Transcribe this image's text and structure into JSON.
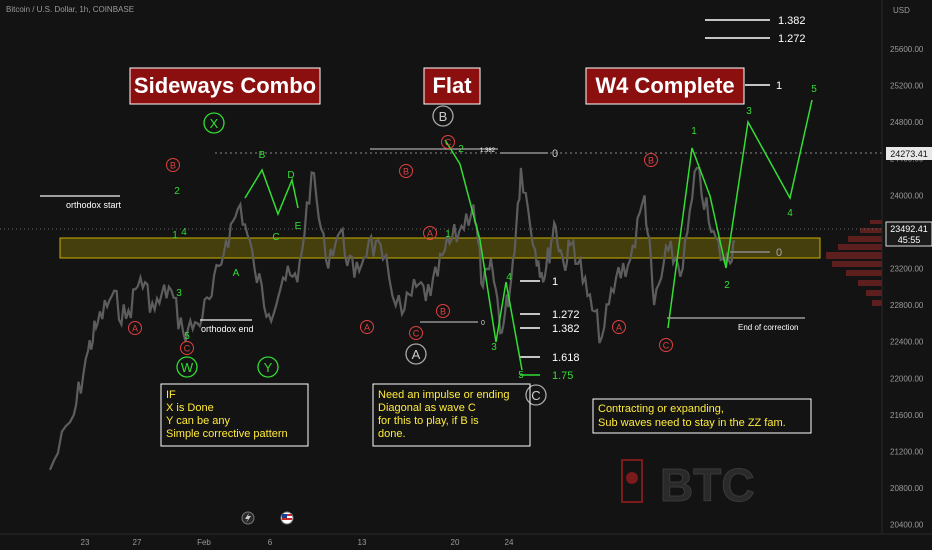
{
  "chart_data": {
    "type": "line",
    "symbol_line": "Bitcoin / U.S. Dollar, 1h, COINBASE",
    "y_axis_title": "USD",
    "ylim": [
      20320,
      26080
    ],
    "y_ticks": [
      25600,
      25200,
      24800,
      24400,
      24000,
      23600,
      23200,
      22800,
      22400,
      22000,
      21600,
      21200,
      20800,
      20400
    ],
    "y_tick_labels": [
      "25600.00",
      "25200.00",
      "24800.00",
      "24400.00",
      "24000.00",
      "23600.00",
      "23200.00",
      "22800.00",
      "22400.00",
      "22000.00",
      "21600.00",
      "21200.00",
      "20800.00",
      "20400.00"
    ],
    "price_tag_high": "24273.41",
    "price_tag_current": "23492.41",
    "countdown": "45:55",
    "x_tick_labels": [
      "23",
      "27",
      "Feb",
      "6",
      "13",
      "20",
      "24"
    ],
    "price_path": [
      [
        0,
        21000
      ],
      [
        0.05,
        21600
      ],
      [
        0.08,
        22300
      ],
      [
        0.1,
        22600
      ],
      [
        0.13,
        22900
      ],
      [
        0.16,
        22650
      ],
      [
        0.19,
        23100
      ],
      [
        0.22,
        22750
      ],
      [
        0.25,
        23000
      ],
      [
        0.28,
        22500
      ],
      [
        0.31,
        22600
      ],
      [
        0.34,
        22900
      ],
      [
        0.37,
        23500
      ],
      [
        0.4,
        23900
      ],
      [
        0.43,
        23200
      ],
      [
        0.46,
        22700
      ],
      [
        0.49,
        23100
      ],
      [
        0.52,
        23050
      ],
      [
        0.55,
        24250
      ],
      [
        0.58,
        23300
      ],
      [
        0.61,
        23600
      ],
      [
        0.64,
        23100
      ],
      [
        0.67,
        23500
      ],
      [
        0.7,
        23300
      ],
      [
        0.74,
        22700
      ],
      [
        0.77,
        23000
      ],
      [
        0.8,
        22900
      ],
      [
        0.83,
        23400
      ],
      [
        0.86,
        23600
      ],
      [
        0.89,
        23900
      ],
      [
        0.91,
        23000
      ],
      [
        0.93,
        23200
      ],
      [
        0.95,
        22500
      ],
      [
        0.97,
        23100
      ],
      [
        0.99,
        24300
      ],
      [
        1.02,
        23400
      ],
      [
        1.04,
        23100
      ],
      [
        1.06,
        23700
      ],
      [
        1.08,
        23250
      ],
      [
        1.1,
        23500
      ],
      [
        1.13,
        22900
      ],
      [
        1.16,
        22450
      ],
      [
        1.19,
        23100
      ],
      [
        1.22,
        23300
      ],
      [
        1.25,
        24000
      ],
      [
        1.27,
        22800
      ],
      [
        1.3,
        23400
      ],
      [
        1.33,
        23200
      ],
      [
        1.36,
        24300
      ],
      [
        1.39,
        23600
      ],
      [
        1.42,
        23250
      ],
      [
        1.44,
        23500
      ]
    ],
    "titles": [
      "Sideways Combo",
      "Flat",
      "W4 Complete"
    ],
    "annotations": {
      "orthodox_start": "orthodox start",
      "orthodox_end": "orthodox end",
      "end_of_correction": "End of correction",
      "fib_small": "1.382"
    },
    "fib_top": [
      "1.382",
      "1.272",
      "1"
    ],
    "fib_flat_levels": [
      "1",
      "1.272",
      "1.382",
      "1.618",
      "1.75"
    ],
    "fib_right_zero": "0",
    "fib_flat_zero": "0",
    "fib_flat_zero_low": "0",
    "wave_labels": {
      "red": [
        "B",
        "A",
        "C",
        "B",
        "A",
        "C",
        "B",
        "A",
        "C",
        "B",
        "A",
        "C"
      ],
      "green_small": [
        "2",
        "4",
        "1",
        "3",
        "5",
        "A",
        "B",
        "C",
        "D",
        "E",
        "2",
        "1",
        "4",
        "3",
        "5",
        "1",
        "2",
        "3",
        "4",
        "5"
      ],
      "circle_green": [
        "X",
        "W",
        "Y"
      ],
      "circle_gray": [
        "B",
        "A",
        "C"
      ]
    },
    "notes": [
      [
        "IF",
        "X is Done",
        "Y can be any",
        "Simple corrective pattern"
      ],
      [
        "Need an impulse or ending",
        "Diagonal as wave C",
        "for this to play, if B is",
        "done."
      ],
      [
        "Contracting or expanding,",
        "Sub waves need to stay in the ZZ fam."
      ]
    ],
    "watermark": "BTC",
    "colors": {
      "background": "#131313",
      "price": "#5d5d5d",
      "wave": "#33dd33",
      "red_label": "#e04040",
      "note_text": "#ffeb3b",
      "title_bg": "#8b0f0f",
      "zone": "#c9b000"
    }
  }
}
